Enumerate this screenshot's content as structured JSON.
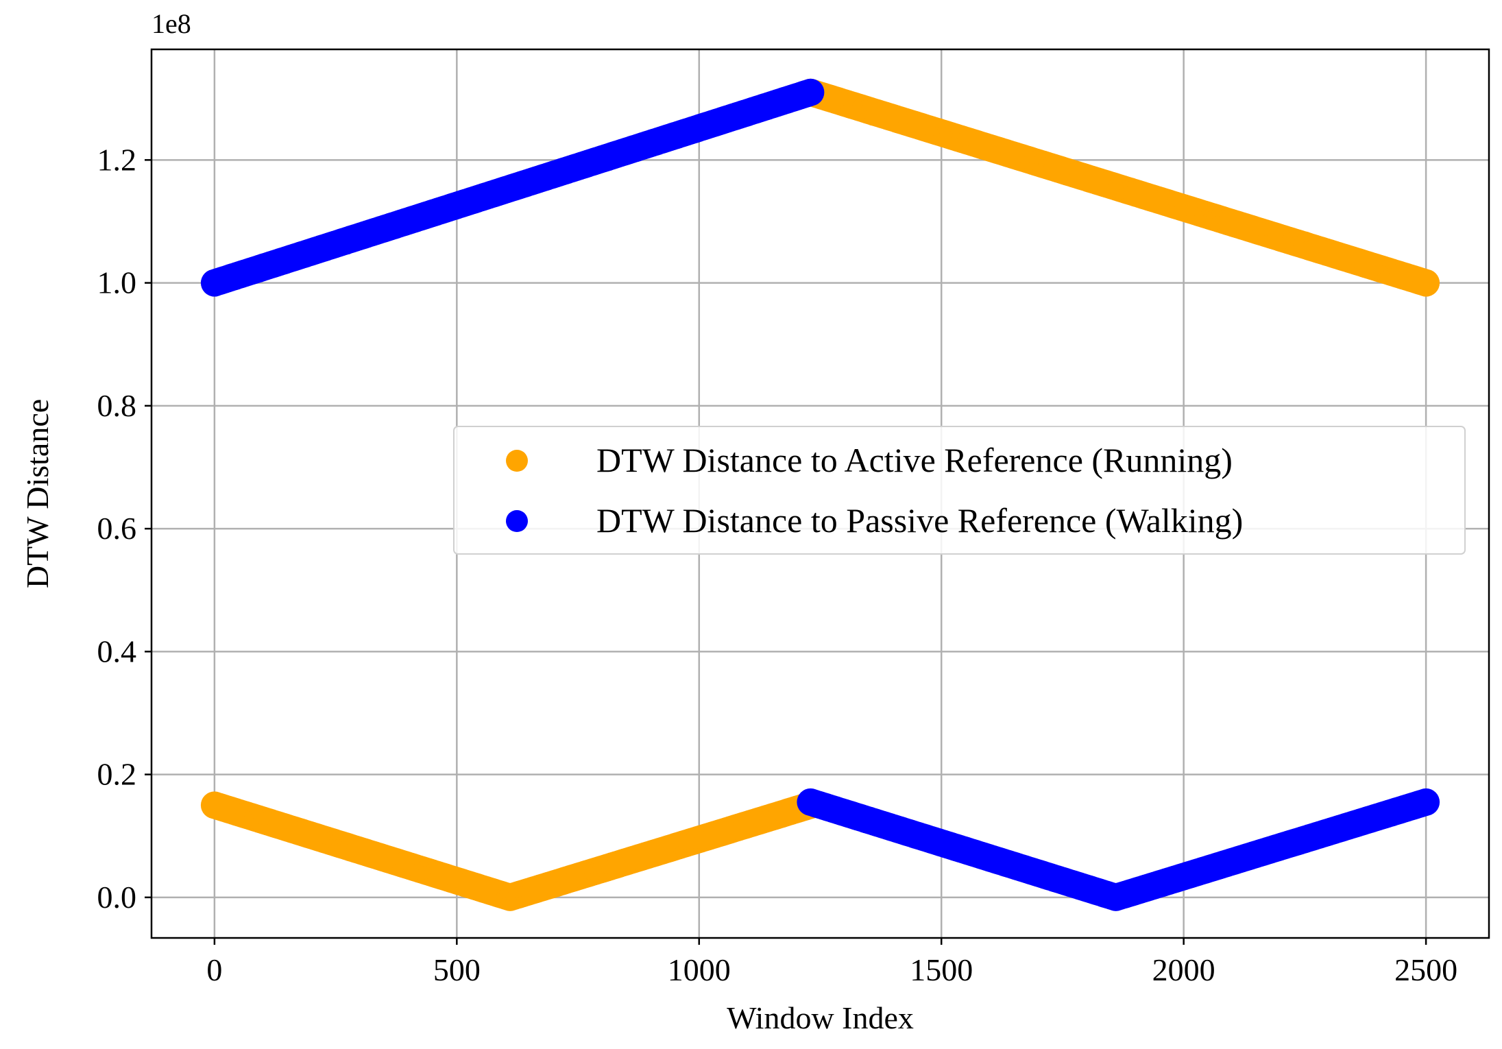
{
  "chart_data": {
    "type": "scatter",
    "title": "",
    "xlabel": "Window Index",
    "ylabel": "DTW Distance",
    "y_exponent_label": "1e8",
    "xlim": [
      -130,
      2630
    ],
    "ylim": [
      -0.066,
      1.38
    ],
    "x_ticks": [
      0,
      500,
      1000,
      1500,
      2000,
      2500
    ],
    "x_tick_labels": [
      "0",
      "500",
      "1000",
      "1500",
      "2000",
      "2500"
    ],
    "y_ticks": [
      0.0,
      0.2,
      0.4,
      0.6,
      0.8,
      1.0,
      1.2
    ],
    "y_tick_labels": [
      "0.0",
      "0.2",
      "0.4",
      "0.6",
      "0.8",
      "1.0",
      "1.2"
    ],
    "grid": true,
    "legend_position": "center-right",
    "series": [
      {
        "name": "DTW Distance to Active Reference (Running)",
        "color": "#FFA500",
        "segments": [
          {
            "x": [
              0,
              610
            ],
            "y": [
              0.15,
              0.0
            ]
          },
          {
            "x": [
              610,
              1230
            ],
            "y": [
              0.0,
              0.15
            ]
          },
          {
            "x": [
              1230,
              2500
            ],
            "y": [
              1.31,
              1.0
            ]
          }
        ]
      },
      {
        "name": "DTW Distance to Passive Reference (Walking)",
        "color": "#0000FF",
        "segments": [
          {
            "x": [
              0,
              1230
            ],
            "y": [
              1.0,
              1.31
            ]
          },
          {
            "x": [
              1230,
              1860
            ],
            "y": [
              0.155,
              0.0
            ]
          },
          {
            "x": [
              1860,
              2500
            ],
            "y": [
              0.0,
              0.155
            ]
          }
        ]
      }
    ]
  }
}
